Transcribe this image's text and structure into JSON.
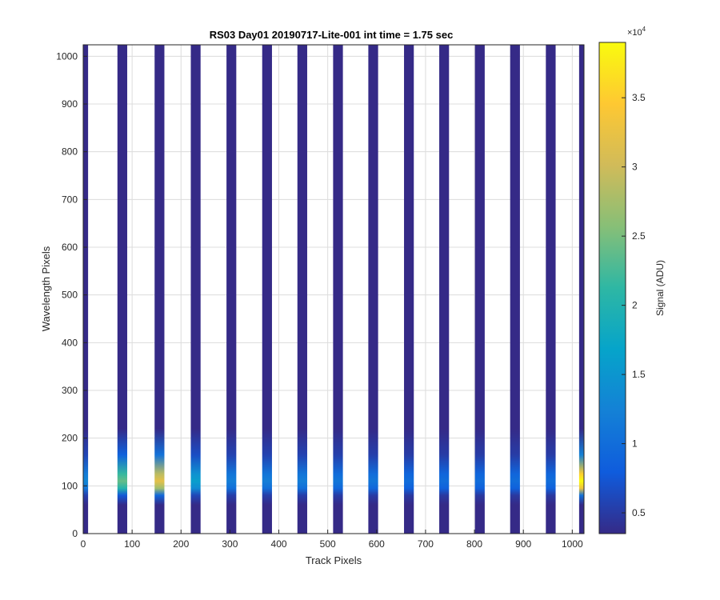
{
  "chart_data": {
    "type": "heatmap",
    "title": "RS03 Day01 20190717-Lite-001 int time = 1.75 sec",
    "xlabel": "Track Pixels",
    "ylabel": "Wavelength Pixels",
    "xlim": [
      0,
      1024
    ],
    "ylim": [
      0,
      1024
    ],
    "xticks": [
      0,
      100,
      200,
      300,
      400,
      500,
      600,
      700,
      800,
      900,
      1000
    ],
    "yticks": [
      0,
      100,
      200,
      300,
      400,
      500,
      600,
      700,
      800,
      900,
      1000
    ],
    "grid": true,
    "colorbar": {
      "label": "Signal (ADU)",
      "exponent_label": "×10",
      "exponent_power": "4",
      "range": [
        0.35,
        3.9
      ],
      "ticks": [
        0.5,
        1,
        1.5,
        2,
        2.5,
        3,
        3.5
      ],
      "tick_labels": [
        "0.5",
        "1",
        "1.5",
        "2",
        "2.5",
        "3",
        "3.5"
      ],
      "colormap": "parula",
      "colormap_stops": [
        "#352a87",
        "#0f5cdd",
        "#1481d6",
        "#06a4ca",
        "#2eb7a4",
        "#87bf77",
        "#d1bb59",
        "#fec832",
        "#f9fb0e"
      ]
    },
    "stripes": [
      {
        "x_start": 0,
        "x_end": 10,
        "peak": 1.3
      },
      {
        "x_start": 70,
        "x_end": 90,
        "peak": 2.4
      },
      {
        "x_start": 146,
        "x_end": 166,
        "peak": 3.2
      },
      {
        "x_start": 220,
        "x_end": 240,
        "peak": 1.6
      },
      {
        "x_start": 293,
        "x_end": 313,
        "peak": 1.2
      },
      {
        "x_start": 366,
        "x_end": 386,
        "peak": 1.2
      },
      {
        "x_start": 438,
        "x_end": 458,
        "peak": 1.2
      },
      {
        "x_start": 511,
        "x_end": 531,
        "peak": 1.1
      },
      {
        "x_start": 583,
        "x_end": 603,
        "peak": 1.1
      },
      {
        "x_start": 656,
        "x_end": 676,
        "peak": 1.0
      },
      {
        "x_start": 728,
        "x_end": 748,
        "peak": 1.0
      },
      {
        "x_start": 801,
        "x_end": 821,
        "peak": 1.0
      },
      {
        "x_start": 873,
        "x_end": 893,
        "peak": 1.0
      },
      {
        "x_start": 946,
        "x_end": 966,
        "peak": 1.0
      },
      {
        "x_start": 1014,
        "x_end": 1024,
        "peak": 3.9
      }
    ],
    "signal_band": {
      "y_center": 110,
      "y_low": 60,
      "y_high": 220
    },
    "background_value": 0.35
  }
}
